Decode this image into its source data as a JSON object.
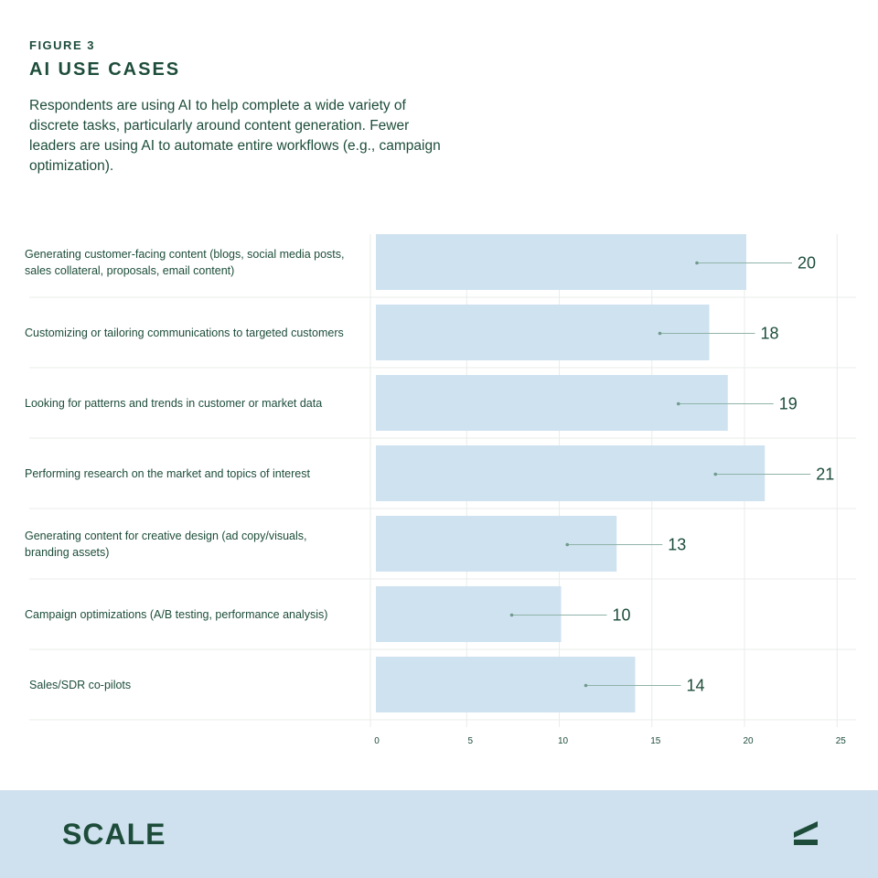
{
  "header": {
    "figure_label": "FIGURE 3",
    "title": "AI USE CASES",
    "description": "Respondents are using AI to help complete a wide variety of discrete tasks, particularly around content generation. Fewer leaders are using AI to automate entire workflows (e.g., campaign optimization)."
  },
  "chart_data": {
    "type": "bar",
    "orientation": "horizontal",
    "title": "AI USE CASES",
    "categories": [
      "Generating customer-facing content (blogs, social media posts, sales collateral, proposals, email content)",
      "Customizing or tailoring communications to targeted customers",
      "Looking for patterns and trends in customer or market data",
      "Performing research on the market and topics of interest",
      "Generating content for creative design (ad copy/visuals, branding assets)",
      "Campaign optimizations (A/B testing, performance analysis)",
      "Sales/SDR co-pilots"
    ],
    "values": [
      20,
      18,
      19,
      21,
      13,
      10,
      14
    ],
    "xlim": [
      0,
      25
    ],
    "xticks": [
      0,
      5,
      10,
      15,
      20,
      25
    ],
    "grid": true,
    "bar_color": "#cfe2f0",
    "text_color": "#1d4d3a"
  },
  "footer": {
    "brand": "SCALE",
    "logo_icon": "scale-mark-icon",
    "background": "#cfe0ee"
  }
}
